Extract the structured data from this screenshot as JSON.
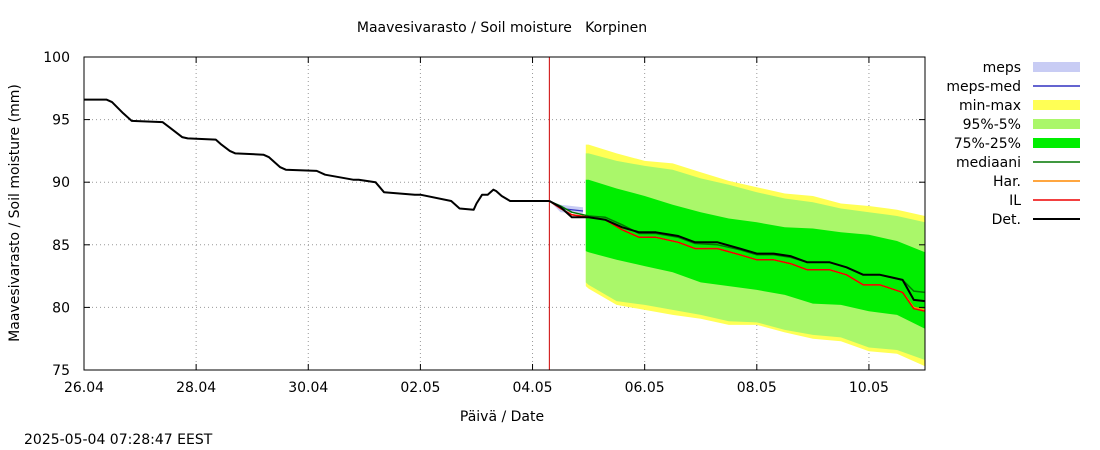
{
  "chart_data": {
    "type": "line",
    "title": "Maavesivarasto / Soil moisture   Korpinen",
    "xlabel": "Päivä / Date",
    "ylabel": "Maavesivarasto / Soil moisture (mm)",
    "timestamp": "2025-05-04 07:28:47 EEST",
    "xlim": [
      0,
      15
    ],
    "ylim": [
      75,
      100
    ],
    "x_ticks": [
      {
        "x": 0,
        "label": "26.04"
      },
      {
        "x": 2,
        "label": "28.04"
      },
      {
        "x": 4,
        "label": "30.04"
      },
      {
        "x": 6,
        "label": "02.05"
      },
      {
        "x": 8,
        "label": "04.05"
      },
      {
        "x": 10,
        "label": "06.05"
      },
      {
        "x": 12,
        "label": "08.05"
      },
      {
        "x": 14,
        "label": "10.05"
      }
    ],
    "y_ticks": [
      {
        "y": 75,
        "label": "75"
      },
      {
        "y": 80,
        "label": "80"
      },
      {
        "y": 85,
        "label": "85"
      },
      {
        "y": 90,
        "label": "90"
      },
      {
        "y": 95,
        "label": "95"
      },
      {
        "y": 100,
        "label": "100"
      }
    ],
    "grid": true,
    "current_time_x": 8.3,
    "legend_position": "right",
    "colors": {
      "meps": "#c8ccf4",
      "meps_med": "#3030c0",
      "minmax": "#ffff55",
      "p95_5": "#aaf76a",
      "p75_25": "#00ee00",
      "median": "#007700",
      "har": "#ff8800",
      "il": "#ee0000",
      "det": "#000000",
      "now_line": "#cc0000"
    },
    "legend": [
      {
        "key": "meps",
        "label": "meps",
        "kind": "box"
      },
      {
        "key": "meps_med",
        "label": "meps-med",
        "kind": "line"
      },
      {
        "key": "minmax",
        "label": "min-max",
        "kind": "box"
      },
      {
        "key": "p95_5",
        "label": "95%-5%",
        "kind": "box"
      },
      {
        "key": "p75_25",
        "label": "75%-25%",
        "kind": "box"
      },
      {
        "key": "median",
        "label": "mediaani",
        "kind": "line"
      },
      {
        "key": "har",
        "label": "Har.",
        "kind": "line"
      },
      {
        "key": "il",
        "label": "IL",
        "kind": "line"
      },
      {
        "key": "det",
        "label": "Det.",
        "kind": "line"
      }
    ],
    "series": [
      {
        "name": "Det. (observed)",
        "key": "det",
        "x": [
          0,
          0.4,
          0.5,
          0.7,
          0.85,
          1.4,
          1.55,
          1.75,
          1.85,
          2.35,
          2.45,
          2.6,
          2.7,
          3.2,
          3.3,
          3.5,
          3.6,
          4.15,
          4.3,
          4.8,
          4.9,
          5.2,
          5.35,
          5.9,
          6.0,
          6.55,
          6.7,
          6.95,
          7.0,
          7.1,
          7.2,
          7.3,
          7.35,
          7.45,
          7.6,
          7.7,
          7.8,
          7.95,
          8.3
        ],
        "values": [
          96.6,
          96.6,
          96.4,
          95.5,
          94.9,
          94.8,
          94.3,
          93.6,
          93.5,
          93.4,
          93.0,
          92.5,
          92.3,
          92.2,
          92.0,
          91.2,
          91.0,
          90.9,
          90.6,
          90.2,
          90.2,
          90.0,
          89.2,
          89.0,
          89.0,
          88.5,
          87.9,
          87.8,
          88.3,
          89.0,
          89.0,
          89.4,
          89.3,
          88.9,
          88.5,
          88.5,
          88.5,
          88.5,
          88.5
        ]
      },
      {
        "name": "meps",
        "key": "meps",
        "x": [
          8.3,
          8.5,
          8.9
        ],
        "lower": [
          88.5,
          87.6,
          87.5
        ],
        "upper": [
          88.5,
          88.2,
          88.0
        ]
      },
      {
        "name": "meps-med",
        "key": "meps_med",
        "x": [
          8.3,
          8.5,
          8.9
        ],
        "values": [
          88.5,
          87.9,
          87.7
        ]
      },
      {
        "name": "min-max",
        "key": "minmax",
        "x": [
          8.95,
          9.0,
          9.5,
          10.0,
          10.5,
          11.0,
          11.5,
          12.0,
          12.5,
          13.0,
          13.5,
          14.0,
          14.5,
          15.0
        ],
        "lower": [
          81.7,
          81.5,
          80.2,
          79.8,
          79.4,
          79.1,
          78.6,
          78.6,
          78.0,
          77.5,
          77.3,
          76.5,
          76.3,
          75.3
        ],
        "upper": [
          93.0,
          93.0,
          92.3,
          91.7,
          91.5,
          90.8,
          90.1,
          89.6,
          89.1,
          88.9,
          88.3,
          88.1,
          87.8,
          87.3
        ]
      },
      {
        "name": "95%-5%",
        "key": "p95_5",
        "x": [
          8.95,
          9.0,
          9.5,
          10.0,
          10.5,
          11.0,
          11.5,
          12.0,
          12.5,
          13.0,
          13.5,
          14.0,
          14.5,
          15.0
        ],
        "lower": [
          82.0,
          81.8,
          80.5,
          80.2,
          79.8,
          79.4,
          78.9,
          78.8,
          78.2,
          77.8,
          77.6,
          76.8,
          76.6,
          75.8
        ],
        "upper": [
          92.3,
          92.3,
          91.7,
          91.3,
          91.0,
          90.3,
          89.8,
          89.2,
          88.7,
          88.4,
          87.9,
          87.6,
          87.3,
          86.8
        ]
      },
      {
        "name": "75%-25%",
        "key": "p75_25",
        "x": [
          8.95,
          9.0,
          9.5,
          10.0,
          10.5,
          11.0,
          11.5,
          12.0,
          12.5,
          13.0,
          13.5,
          14.0,
          14.5,
          15.0
        ],
        "lower": [
          84.5,
          84.4,
          83.8,
          83.3,
          82.8,
          82.0,
          81.7,
          81.4,
          81.0,
          80.3,
          80.2,
          79.7,
          79.4,
          78.3
        ],
        "upper": [
          90.2,
          90.2,
          89.5,
          88.9,
          88.2,
          87.6,
          87.1,
          86.8,
          86.4,
          86.3,
          86.0,
          85.8,
          85.3,
          84.4
        ]
      },
      {
        "name": "mediaani",
        "key": "median",
        "x": [
          8.3,
          8.5,
          8.7,
          9.0,
          9.3,
          9.6,
          9.9,
          10.2,
          10.6,
          10.9,
          11.3,
          11.7,
          12.0,
          12.3,
          12.6,
          12.9,
          13.3,
          13.6,
          13.9,
          14.2,
          14.6,
          14.8,
          15.0
        ],
        "values": [
          88.5,
          88.1,
          87.6,
          87.3,
          87.2,
          86.6,
          85.9,
          85.9,
          85.6,
          85.1,
          85.0,
          84.6,
          84.2,
          84.2,
          84.0,
          83.6,
          83.6,
          83.2,
          82.6,
          82.6,
          82.2,
          81.3,
          81.2
        ]
      },
      {
        "name": "Har.",
        "key": "har",
        "x": [
          8.3,
          8.5,
          8.7,
          9.0,
          9.3,
          9.6,
          9.9,
          10.2,
          10.6,
          10.9,
          11.3,
          11.7,
          12.0,
          12.3,
          12.6,
          12.9,
          13.3,
          13.6,
          13.9,
          14.2,
          14.6,
          14.8,
          15.0
        ],
        "values": [
          88.5,
          87.9,
          87.4,
          87.2,
          87.0,
          86.2,
          85.6,
          85.6,
          85.2,
          84.7,
          84.7,
          84.2,
          83.8,
          83.8,
          83.5,
          83.0,
          83.0,
          82.6,
          81.8,
          81.8,
          81.2,
          80.0,
          79.8
        ]
      },
      {
        "name": "IL",
        "key": "il",
        "x": [
          8.3,
          8.5,
          8.7,
          9.0,
          9.3,
          9.6,
          9.9,
          10.2,
          10.6,
          10.9,
          11.3,
          11.7,
          12.0,
          12.3,
          12.6,
          12.9,
          13.3,
          13.6,
          13.9,
          14.2,
          14.6,
          14.8,
          15.0
        ],
        "values": [
          88.5,
          87.9,
          87.4,
          87.2,
          87.0,
          86.2,
          85.6,
          85.6,
          85.2,
          84.7,
          84.7,
          84.2,
          83.8,
          83.8,
          83.5,
          83.0,
          83.0,
          82.6,
          81.8,
          81.8,
          81.2,
          79.9,
          79.7
        ]
      },
      {
        "name": "Det. (forecast)",
        "key": "det",
        "x": [
          8.3,
          8.5,
          8.7,
          9.0,
          9.3,
          9.6,
          9.9,
          10.2,
          10.6,
          10.9,
          11.3,
          11.7,
          12.0,
          12.3,
          12.6,
          12.9,
          13.3,
          13.6,
          13.9,
          14.2,
          14.6,
          14.8,
          15.0
        ],
        "values": [
          88.5,
          88.0,
          87.2,
          87.2,
          87.0,
          86.4,
          86.0,
          86.0,
          85.7,
          85.2,
          85.2,
          84.7,
          84.3,
          84.3,
          84.1,
          83.6,
          83.6,
          83.2,
          82.6,
          82.6,
          82.2,
          80.6,
          80.5
        ]
      }
    ]
  }
}
